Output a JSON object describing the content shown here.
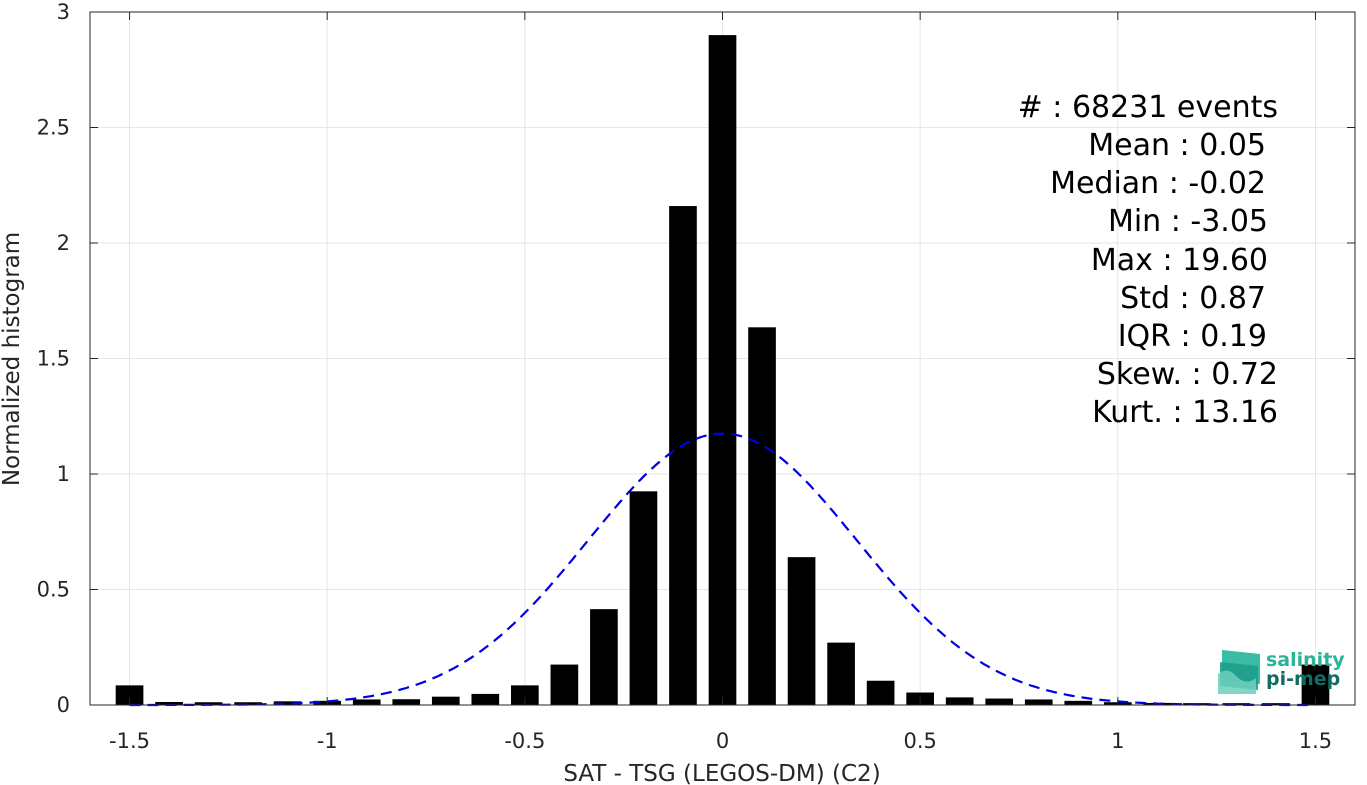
{
  "chart_data": {
    "type": "bar",
    "xlabel": "SAT - TSG (LEGOS-DM) (C2)",
    "ylabel": "Normalized histogram",
    "xlim": [
      -1.6,
      1.6
    ],
    "ylim": [
      0,
      3
    ],
    "grid": true,
    "x_ticks": [
      -1.5,
      -1,
      -0.5,
      0,
      0.5,
      1,
      1.5
    ],
    "x_tick_labels": [
      "-1.5",
      "-1",
      "-0.5",
      "0",
      "0.5",
      "1",
      "1.5"
    ],
    "y_ticks": [
      0,
      0.5,
      1,
      1.5,
      2,
      2.5,
      3
    ],
    "y_tick_labels": [
      "0",
      "0.5",
      "1",
      "1.5",
      "2",
      "2.5",
      "3"
    ],
    "bar_width": 0.07,
    "bar_color": "#000000",
    "bars": {
      "x": [
        -1.5,
        -1.4,
        -1.3,
        -1.2,
        -1.1,
        -1.0,
        -0.9,
        -0.8,
        -0.7,
        -0.6,
        -0.5,
        -0.4,
        -0.3,
        -0.2,
        -0.1,
        0.0,
        0.1,
        0.2,
        0.3,
        0.4,
        0.5,
        0.6,
        0.7,
        0.8,
        0.9,
        1.0,
        1.1,
        1.2,
        1.3,
        1.4,
        1.5
      ],
      "values": [
        0.085,
        0.013,
        0.012,
        0.012,
        0.016,
        0.018,
        0.024,
        0.025,
        0.036,
        0.048,
        0.085,
        0.175,
        0.415,
        0.925,
        2.16,
        2.9,
        1.635,
        0.64,
        0.27,
        0.105,
        0.054,
        0.033,
        0.028,
        0.024,
        0.018,
        0.012,
        0.009,
        0.008,
        0.008,
        0.008,
        0.175
      ]
    },
    "fit": {
      "style": "dashed",
      "color": "#0000e0",
      "mean": 0.0,
      "std": 0.34,
      "peak": 1.175
    },
    "stats_lines": [
      "#  : 68231 events",
      "Mean : 0.05",
      "Median : -0.02",
      "Min : -3.05",
      "Max : 19.60",
      "Std : 0.87",
      "IQR : 0.19",
      "Skew. : 0.72",
      "Kurt. : 13.16"
    ]
  },
  "logo": {
    "line1": "salinity",
    "line2": "pi-mep",
    "color_top": "#29b39a",
    "color_bottom": "#0f6e62"
  }
}
